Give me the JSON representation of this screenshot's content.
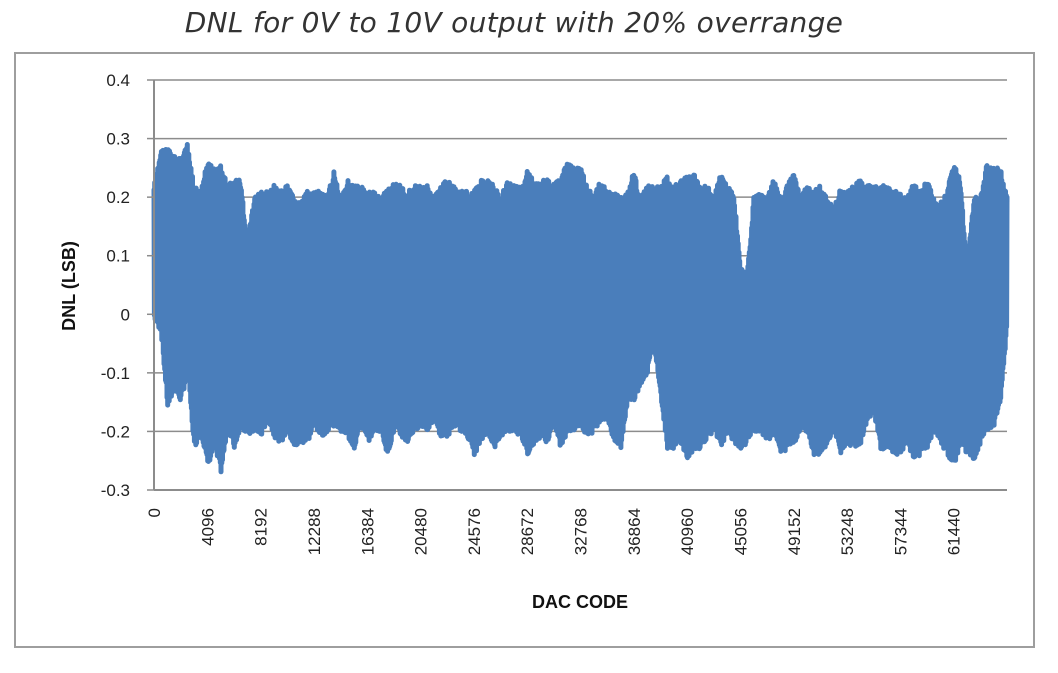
{
  "chart_data": {
    "type": "line",
    "title": "DNL for 0V to 10V output with 20% overrange",
    "xlabel": "DAC CODE",
    "ylabel": "DNL (LSB)",
    "ylim": [
      -0.3,
      0.4
    ],
    "xlim": [
      0,
      65535
    ],
    "grid": true,
    "grid_axis": "y",
    "legend": "none",
    "series_color": "#4a7ebb",
    "yticks": [
      "0.4",
      "0.3",
      "0.2",
      "0.1",
      "0",
      "-0.1",
      "-0.2",
      "-0.3"
    ],
    "ytick_values": [
      0.4,
      0.3,
      0.2,
      0.1,
      0,
      -0.1,
      -0.2,
      -0.3
    ],
    "xticks": [
      "0",
      "4096",
      "8192",
      "12288",
      "16384",
      "20480",
      "24576",
      "28672",
      "32768",
      "36864",
      "40960",
      "45056",
      "49152",
      "53248",
      "57344",
      "61440"
    ],
    "xtick_values": [
      0,
      4096,
      8192,
      12288,
      16384,
      20480,
      24576,
      28672,
      32768,
      36864,
      40960,
      45056,
      49152,
      53248,
      57344,
      61440
    ],
    "series": [
      {
        "name": "DNL",
        "description": "Dense oscillating DNL trace; envelope sampled as per-segment max/min (LSB)",
        "x": [
          0,
          512,
          1024,
          1536,
          2048,
          2560,
          3072,
          3584,
          4096,
          4608,
          5120,
          5632,
          6144,
          6656,
          7168,
          7680,
          8192,
          8704,
          9216,
          9728,
          10240,
          10752,
          11264,
          11776,
          12288,
          12800,
          13312,
          13824,
          14336,
          14848,
          15360,
          15872,
          16384,
          16896,
          17408,
          17920,
          18432,
          18944,
          19456,
          19968,
          20480,
          20992,
          21504,
          22016,
          22528,
          23040,
          23552,
          24064,
          24576,
          25088,
          25600,
          26112,
          26624,
          27136,
          27648,
          28160,
          28672,
          29184,
          29696,
          30208,
          30720,
          31232,
          31744,
          32256,
          32768,
          33280,
          33792,
          34304,
          34816,
          35328,
          35840,
          36352,
          36864,
          37376,
          37888,
          38400,
          38912,
          39424,
          39936,
          40448,
          40960,
          41472,
          41984,
          42496,
          43008,
          43520,
          44032,
          44544,
          45056,
          45568,
          46080,
          46592,
          47104,
          47616,
          48128,
          48640,
          49152,
          49664,
          50176,
          50688,
          51200,
          51712,
          52224,
          52736,
          53248,
          53760,
          54272,
          54784,
          55296,
          55808,
          56320,
          56832,
          57344,
          57856,
          58368,
          58880,
          59392,
          59904,
          60416,
          60928,
          61440,
          61952,
          62464,
          62976,
          63488,
          64000,
          64512,
          65024,
          65535
        ],
        "upper": [
          0.22,
          0.28,
          0.285,
          0.27,
          0.27,
          0.29,
          0.22,
          0.21,
          0.26,
          0.25,
          0.26,
          0.22,
          0.23,
          0.23,
          0.12,
          0.2,
          0.21,
          0.21,
          0.22,
          0.21,
          0.22,
          0.2,
          0.19,
          0.21,
          0.21,
          0.21,
          0.2,
          0.245,
          0.2,
          0.23,
          0.22,
          0.22,
          0.21,
          0.21,
          0.2,
          0.215,
          0.225,
          0.22,
          0.21,
          0.22,
          0.22,
          0.22,
          0.2,
          0.22,
          0.23,
          0.22,
          0.21,
          0.21,
          0.21,
          0.23,
          0.23,
          0.22,
          0.2,
          0.23,
          0.22,
          0.22,
          0.245,
          0.23,
          0.23,
          0.23,
          0.225,
          0.23,
          0.26,
          0.25,
          0.25,
          0.22,
          0.2,
          0.23,
          0.21,
          0.21,
          0.2,
          0.21,
          0.245,
          0.2,
          0.22,
          0.22,
          0.22,
          0.235,
          0.22,
          0.23,
          0.235,
          0.24,
          0.22,
          0.22,
          0.2,
          0.24,
          0.22,
          0.21,
          0.08,
          0.07,
          0.2,
          0.21,
          0.2,
          0.23,
          0.2,
          0.22,
          0.24,
          0.2,
          0.22,
          0.21,
          0.22,
          0.2,
          0.18,
          0.22,
          0.21,
          0.22,
          0.23,
          0.22,
          0.22,
          0.22,
          0.22,
          0.21,
          0.21,
          0.2,
          0.225,
          0.21,
          0.23,
          0.2,
          0.19,
          0.21,
          0.26,
          0.23,
          0.08,
          0.2,
          0.2,
          0.26,
          0.25,
          0.25,
          0.2
        ],
        "lower": [
          -0.01,
          -0.03,
          -0.16,
          -0.13,
          -0.15,
          -0.1,
          -0.23,
          -0.2,
          -0.26,
          -0.23,
          -0.27,
          -0.2,
          -0.23,
          -0.19,
          -0.21,
          -0.2,
          -0.21,
          -0.18,
          -0.21,
          -0.22,
          -0.2,
          -0.23,
          -0.22,
          -0.22,
          -0.19,
          -0.21,
          -0.2,
          -0.19,
          -0.2,
          -0.21,
          -0.23,
          -0.19,
          -0.22,
          -0.2,
          -0.2,
          -0.24,
          -0.2,
          -0.21,
          -0.22,
          -0.2,
          -0.19,
          -0.2,
          -0.18,
          -0.21,
          -0.21,
          -0.19,
          -0.2,
          -0.21,
          -0.24,
          -0.22,
          -0.2,
          -0.23,
          -0.21,
          -0.2,
          -0.2,
          -0.21,
          -0.24,
          -0.22,
          -0.21,
          -0.22,
          -0.19,
          -0.23,
          -0.2,
          -0.2,
          -0.19,
          -0.21,
          -0.2,
          -0.18,
          -0.18,
          -0.22,
          -0.23,
          -0.15,
          -0.15,
          -0.12,
          -0.1,
          -0.05,
          -0.14,
          -0.23,
          -0.23,
          -0.22,
          -0.25,
          -0.23,
          -0.23,
          -0.21,
          -0.2,
          -0.23,
          -0.2,
          -0.22,
          -0.23,
          -0.22,
          -0.2,
          -0.2,
          -0.22,
          -0.2,
          -0.24,
          -0.23,
          -0.22,
          -0.2,
          -0.2,
          -0.24,
          -0.24,
          -0.22,
          -0.2,
          -0.24,
          -0.22,
          -0.23,
          -0.22,
          -0.18,
          -0.17,
          -0.23,
          -0.23,
          -0.24,
          -0.24,
          -0.22,
          -0.25,
          -0.24,
          -0.23,
          -0.2,
          -0.22,
          -0.24,
          -0.26,
          -0.22,
          -0.24,
          -0.25,
          -0.22,
          -0.2,
          -0.19,
          -0.15,
          -0.02
        ]
      }
    ]
  }
}
